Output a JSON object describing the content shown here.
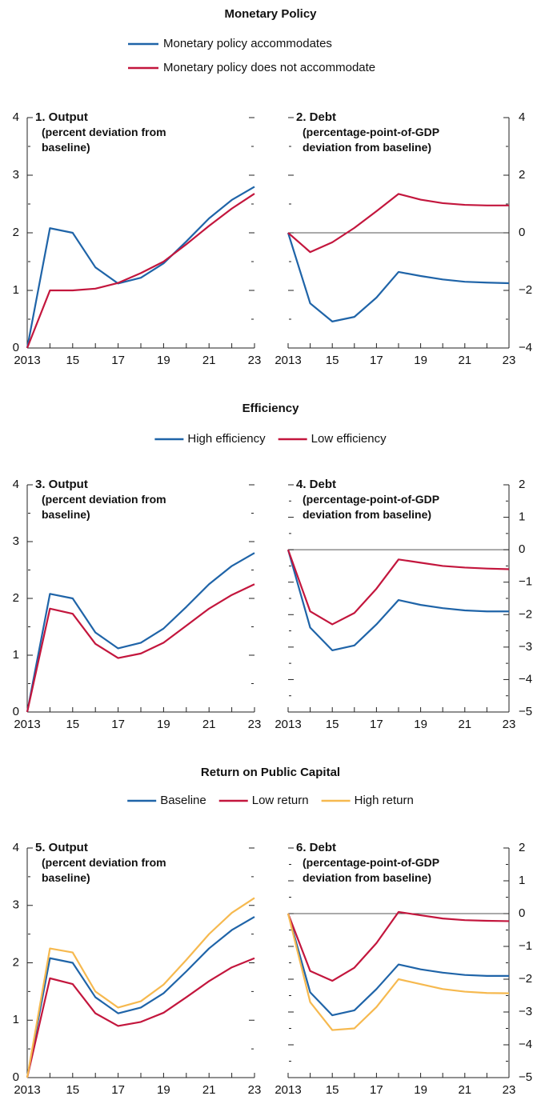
{
  "sections": [
    {
      "title": "Monetary Policy",
      "legend": "column"
    },
    {
      "title": "Efficiency",
      "legend": "row"
    },
    {
      "title": "Return on Public Capital",
      "legend": "row"
    }
  ],
  "chart_data": [
    {
      "type": "line",
      "title": "1. Output",
      "subtitle": "(percent deviation from baseline)",
      "x": [
        2013,
        2014,
        2015,
        2016,
        2017,
        2018,
        2019,
        2020,
        2021,
        2022,
        2023
      ],
      "xlim": [
        2013,
        2023
      ],
      "xticks": [
        {
          "value": 2013,
          "label": "2013"
        },
        {
          "value": 2015,
          "label": "15"
        },
        {
          "value": 2017,
          "label": "17"
        },
        {
          "value": 2019,
          "label": "19"
        },
        {
          "value": 2021,
          "label": "21"
        },
        {
          "value": 2023,
          "label": "23"
        }
      ],
      "xminorticks": [
        2014,
        2016,
        2018,
        2020,
        2022
      ],
      "ylim": [
        0,
        4
      ],
      "yticks": [
        0,
        1,
        2,
        3,
        4
      ],
      "yminorticks": [
        0.5,
        1.5,
        2.5,
        3.5
      ],
      "ytick_side": "left",
      "zero_line": false,
      "series": [
        {
          "name": "Monetary policy accommodates",
          "color": "#1f64a8",
          "values": [
            0,
            2.08,
            2.0,
            1.4,
            1.12,
            1.22,
            1.47,
            1.85,
            2.25,
            2.57,
            2.8
          ]
        },
        {
          "name": "Monetary policy does not accommodate",
          "color": "#c3163d",
          "values": [
            0,
            1.0,
            1.0,
            1.03,
            1.13,
            1.3,
            1.5,
            1.8,
            2.12,
            2.42,
            2.68
          ]
        }
      ]
    },
    {
      "type": "line",
      "title": "2. Debt",
      "subtitle": "(percentage-point-of-GDP deviation from baseline)",
      "x": [
        2013,
        2014,
        2015,
        2016,
        2017,
        2018,
        2019,
        2020,
        2021,
        2022,
        2023
      ],
      "xlim": [
        2013,
        2023
      ],
      "xticks": [
        {
          "value": 2013,
          "label": "2013"
        },
        {
          "value": 2015,
          "label": "15"
        },
        {
          "value": 2017,
          "label": "17"
        },
        {
          "value": 2019,
          "label": "19"
        },
        {
          "value": 2021,
          "label": "21"
        },
        {
          "value": 2023,
          "label": "23"
        }
      ],
      "xminorticks": [
        2014,
        2016,
        2018,
        2020,
        2022
      ],
      "ylim": [
        -4,
        4
      ],
      "yticks": [
        {
          "value": -4,
          "label": "−4"
        },
        {
          "value": -2,
          "label": "−2"
        },
        0,
        2,
        4
      ],
      "yminorticks": [
        -3,
        -1,
        1,
        3
      ],
      "ytick_side": "right",
      "zero_line": true,
      "series": [
        {
          "name": "Monetary policy accommodates",
          "color": "#1f64a8",
          "values": [
            0,
            -2.45,
            -3.08,
            -2.92,
            -2.25,
            -1.36,
            -1.5,
            -1.62,
            -1.7,
            -1.73,
            -1.75
          ]
        },
        {
          "name": "Monetary policy does not accommodate",
          "color": "#c3163d",
          "values": [
            0,
            -0.67,
            -0.33,
            0.17,
            0.75,
            1.35,
            1.15,
            1.03,
            0.97,
            0.95,
            0.95
          ]
        }
      ]
    },
    {
      "type": "line",
      "title": "3. Output",
      "subtitle": "(percent deviation from baseline)",
      "x": [
        2013,
        2014,
        2015,
        2016,
        2017,
        2018,
        2019,
        2020,
        2021,
        2022,
        2023
      ],
      "xlim": [
        2013,
        2023
      ],
      "xticks": [
        {
          "value": 2013,
          "label": "2013"
        },
        {
          "value": 2015,
          "label": "15"
        },
        {
          "value": 2017,
          "label": "17"
        },
        {
          "value": 2019,
          "label": "19"
        },
        {
          "value": 2021,
          "label": "21"
        },
        {
          "value": 2023,
          "label": "23"
        }
      ],
      "xminorticks": [
        2014,
        2016,
        2018,
        2020,
        2022
      ],
      "ylim": [
        0,
        4
      ],
      "yticks": [
        0,
        1,
        2,
        3,
        4
      ],
      "yminorticks": [
        0.5,
        1.5,
        2.5,
        3.5
      ],
      "ytick_side": "left",
      "zero_line": false,
      "series": [
        {
          "name": "High efficiency",
          "color": "#1f64a8",
          "values": [
            0,
            2.08,
            2.0,
            1.4,
            1.12,
            1.22,
            1.47,
            1.85,
            2.25,
            2.57,
            2.8
          ]
        },
        {
          "name": "Low efficiency",
          "color": "#c3163d",
          "values": [
            0,
            1.82,
            1.73,
            1.2,
            0.95,
            1.03,
            1.22,
            1.52,
            1.82,
            2.06,
            2.25
          ]
        }
      ]
    },
    {
      "type": "line",
      "title": "4. Debt",
      "subtitle": "(percentage-point-of-GDP deviation from baseline)",
      "x": [
        2013,
        2014,
        2015,
        2016,
        2017,
        2018,
        2019,
        2020,
        2021,
        2022,
        2023
      ],
      "xlim": [
        2013,
        2023
      ],
      "xticks": [
        {
          "value": 2013,
          "label": "2013"
        },
        {
          "value": 2015,
          "label": "15"
        },
        {
          "value": 2017,
          "label": "17"
        },
        {
          "value": 2019,
          "label": "19"
        },
        {
          "value": 2021,
          "label": "21"
        },
        {
          "value": 2023,
          "label": "23"
        }
      ],
      "xminorticks": [
        2014,
        2016,
        2018,
        2020,
        2022
      ],
      "ylim": [
        -5,
        2
      ],
      "yticks": [
        {
          "value": -5,
          "label": "−5"
        },
        {
          "value": -4,
          "label": "−4"
        },
        {
          "value": -3,
          "label": "−3"
        },
        {
          "value": -2,
          "label": "−2"
        },
        {
          "value": -1,
          "label": "−1"
        },
        0,
        1,
        2
      ],
      "yminorticks": [
        -4.5,
        -3.5,
        -2.5,
        -1.5,
        -0.5,
        0.5,
        1.5
      ],
      "ytick_side": "right",
      "zero_line": true,
      "series": [
        {
          "name": "High efficiency",
          "color": "#1f64a8",
          "values": [
            0,
            -2.4,
            -3.1,
            -2.95,
            -2.3,
            -1.55,
            -1.7,
            -1.8,
            -1.87,
            -1.9,
            -1.9
          ]
        },
        {
          "name": "Low efficiency",
          "color": "#c3163d",
          "values": [
            0,
            -1.9,
            -2.3,
            -1.95,
            -1.2,
            -0.3,
            -0.4,
            -0.5,
            -0.55,
            -0.58,
            -0.6
          ]
        }
      ]
    },
    {
      "type": "line",
      "title": "5. Output",
      "subtitle": "(percent deviation from baseline)",
      "x": [
        2013,
        2014,
        2015,
        2016,
        2017,
        2018,
        2019,
        2020,
        2021,
        2022,
        2023
      ],
      "xlim": [
        2013,
        2023
      ],
      "xticks": [
        {
          "value": 2013,
          "label": "2013"
        },
        {
          "value": 2015,
          "label": "15"
        },
        {
          "value": 2017,
          "label": "17"
        },
        {
          "value": 2019,
          "label": "19"
        },
        {
          "value": 2021,
          "label": "21"
        },
        {
          "value": 2023,
          "label": "23"
        }
      ],
      "xminorticks": [
        2014,
        2016,
        2018,
        2020,
        2022
      ],
      "ylim": [
        0,
        4
      ],
      "yticks": [
        0,
        1,
        2,
        3,
        4
      ],
      "yminorticks": [
        0.5,
        1.5,
        2.5,
        3.5
      ],
      "ytick_side": "left",
      "zero_line": false,
      "series": [
        {
          "name": "Baseline",
          "color": "#1f64a8",
          "values": [
            0,
            2.08,
            2.0,
            1.4,
            1.12,
            1.22,
            1.47,
            1.85,
            2.25,
            2.57,
            2.8
          ]
        },
        {
          "name": "Low return",
          "color": "#c3163d",
          "values": [
            0,
            1.73,
            1.63,
            1.12,
            0.9,
            0.97,
            1.13,
            1.4,
            1.68,
            1.92,
            2.08
          ]
        },
        {
          "name": "High return",
          "color": "#f6b94f",
          "values": [
            0,
            2.25,
            2.18,
            1.5,
            1.22,
            1.33,
            1.62,
            2.05,
            2.5,
            2.87,
            3.13
          ]
        }
      ]
    },
    {
      "type": "line",
      "title": "6. Debt",
      "subtitle": "(percentage-point-of-GDP deviation from baseline)",
      "x": [
        2013,
        2014,
        2015,
        2016,
        2017,
        2018,
        2019,
        2020,
        2021,
        2022,
        2023
      ],
      "xlim": [
        2013,
        2023
      ],
      "xticks": [
        {
          "value": 2013,
          "label": "2013"
        },
        {
          "value": 2015,
          "label": "15"
        },
        {
          "value": 2017,
          "label": "17"
        },
        {
          "value": 2019,
          "label": "19"
        },
        {
          "value": 2021,
          "label": "21"
        },
        {
          "value": 2023,
          "label": "23"
        }
      ],
      "xminorticks": [
        2014,
        2016,
        2018,
        2020,
        2022
      ],
      "ylim": [
        -5,
        2
      ],
      "yticks": [
        {
          "value": -5,
          "label": "−5"
        },
        {
          "value": -4,
          "label": "−4"
        },
        {
          "value": -3,
          "label": "−3"
        },
        {
          "value": -2,
          "label": "−2"
        },
        {
          "value": -1,
          "label": "−1"
        },
        0,
        1,
        2
      ],
      "yminorticks": [
        -4.5,
        -3.5,
        -2.5,
        -1.5,
        -0.5,
        0.5,
        1.5
      ],
      "ytick_side": "right",
      "zero_line": true,
      "series": [
        {
          "name": "Baseline",
          "color": "#1f64a8",
          "values": [
            0,
            -2.4,
            -3.1,
            -2.95,
            -2.3,
            -1.55,
            -1.7,
            -1.8,
            -1.87,
            -1.9,
            -1.9
          ]
        },
        {
          "name": "Low return",
          "color": "#c3163d",
          "values": [
            0,
            -1.75,
            -2.05,
            -1.65,
            -0.9,
            0.05,
            -0.05,
            -0.15,
            -0.2,
            -0.22,
            -0.23
          ]
        },
        {
          "name": "High return",
          "color": "#f6b94f",
          "values": [
            0,
            -2.7,
            -3.55,
            -3.5,
            -2.85,
            -2.0,
            -2.15,
            -2.3,
            -2.38,
            -2.42,
            -2.43
          ]
        }
      ]
    }
  ]
}
